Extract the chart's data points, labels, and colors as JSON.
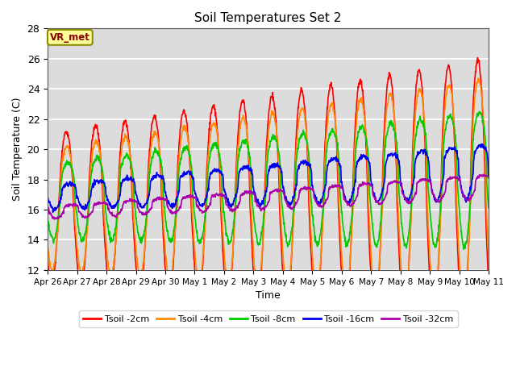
{
  "title": "Soil Temperatures Set 2",
  "xlabel": "Time",
  "ylabel": "Soil Temperature (C)",
  "ylim": [
    12,
    28
  ],
  "xlim_start": 0,
  "xlim_end": 15.0,
  "annotation": "VR_met",
  "annotation_color": "#8B0000",
  "annotation_bg": "#FFFF99",
  "annotation_border": "#8B8B00",
  "bg_color": "#DCDCDC",
  "grid_color": "white",
  "series": [
    {
      "label": "Tsoil -2cm",
      "color": "#FF0000",
      "lw": 1.2
    },
    {
      "label": "Tsoil -4cm",
      "color": "#FF8C00",
      "lw": 1.2
    },
    {
      "label": "Tsoil -8cm",
      "color": "#00CC00",
      "lw": 1.2
    },
    {
      "label": "Tsoil -16cm",
      "color": "#0000EE",
      "lw": 1.2
    },
    {
      "label": "Tsoil -32cm",
      "color": "#AA00AA",
      "lw": 1.2
    }
  ],
  "tick_labels": [
    "Apr 26",
    "Apr 27",
    "Apr 28",
    "Apr 29",
    "Apr 30",
    "May 1",
    "May 2",
    "May 3",
    "May 4",
    "May 5",
    "May 6",
    "May 7",
    "May 8",
    "May 9",
    "May 10",
    "May 11"
  ],
  "yticks": [
    12,
    14,
    16,
    18,
    20,
    22,
    24,
    26,
    28
  ],
  "n_days": 15,
  "pts_per_day": 96
}
